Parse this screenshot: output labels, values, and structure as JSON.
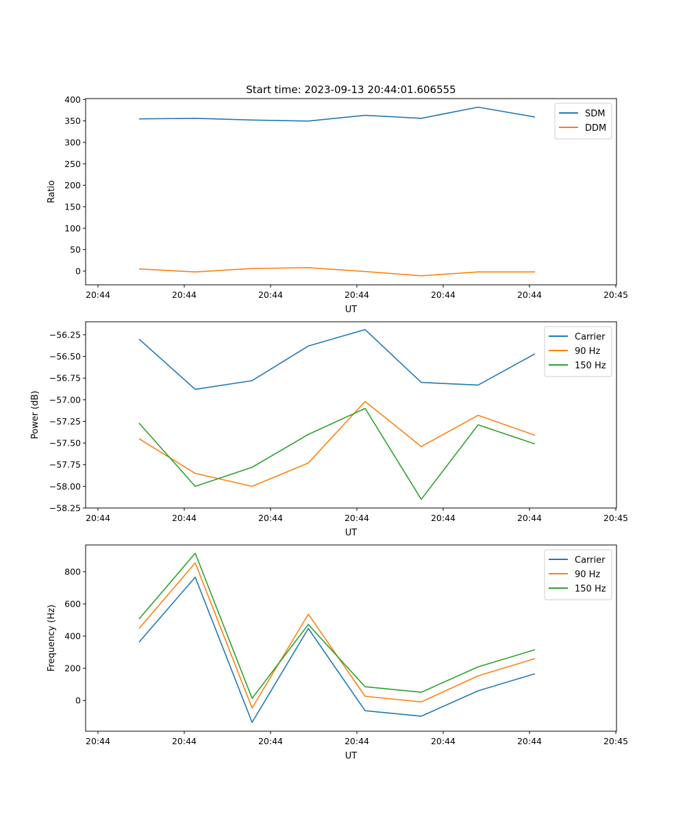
{
  "chart_data": [
    {
      "type": "line",
      "title": "Start time: 2023-09-13 20:44:01.606555",
      "xlabel": "UT",
      "ylabel": "Ratio",
      "x": [
        0.476,
        1.127,
        1.786,
        2.437,
        3.095,
        3.746,
        4.405,
        5.063
      ],
      "xticks": [
        0,
        1,
        2,
        3,
        4,
        5,
        6
      ],
      "xtick_labels": [
        "20:44",
        "20:44",
        "20:44",
        "20:44",
        "20:44",
        "20:44",
        "20:45"
      ],
      "xlim": [
        -0.143,
        6.008
      ],
      "ylim": [
        -32,
        402
      ],
      "yticks": [
        0,
        50,
        100,
        150,
        200,
        250,
        300,
        350,
        400
      ],
      "ytick_labels": [
        "0",
        "50",
        "100",
        "150",
        "200",
        "250",
        "300",
        "350",
        "400"
      ],
      "legend": "top-right",
      "series": [
        {
          "name": "SDM",
          "color": "#1f77b4",
          "values": [
            354.6,
            356,
            352,
            349.6,
            363,
            356,
            382,
            359
          ]
        },
        {
          "name": "DDM",
          "color": "#ff7f0e",
          "values": [
            5,
            -2,
            6,
            8,
            -1,
            -11,
            -2,
            -2
          ]
        }
      ]
    },
    {
      "type": "line",
      "title": "",
      "xlabel": "UT",
      "ylabel": "Power (dB)",
      "x": [
        0.476,
        1.127,
        1.786,
        2.437,
        3.095,
        3.746,
        4.405,
        5.063
      ],
      "xticks": [
        0,
        1,
        2,
        3,
        4,
        5,
        6
      ],
      "xtick_labels": [
        "20:44",
        "20:44",
        "20:44",
        "20:44",
        "20:44",
        "20:44",
        "20:45"
      ],
      "xlim": [
        -0.143,
        6.008
      ],
      "ylim": [
        -58.25,
        -56.1
      ],
      "yticks": [
        -58.25,
        -58.0,
        -57.75,
        -57.5,
        -57.25,
        -57.0,
        -56.75,
        -56.5,
        -56.25
      ],
      "ytick_labels": [
        "−58.25",
        "−58.00",
        "−57.75",
        "−57.50",
        "−57.25",
        "−57.00",
        "−56.75",
        "−56.50",
        "−56.25"
      ],
      "legend": "top-right",
      "series": [
        {
          "name": "Carrier",
          "color": "#1f77b4",
          "values": [
            -56.3,
            -56.88,
            -56.78,
            -56.38,
            -56.19,
            -56.8,
            -56.83,
            -56.47
          ]
        },
        {
          "name": "90 Hz",
          "color": "#ff7f0e",
          "values": [
            -57.45,
            -57.85,
            -58.0,
            -57.73,
            -57.02,
            -57.54,
            -57.18,
            -57.41
          ]
        },
        {
          "name": "150 Hz",
          "color": "#2ca02c",
          "values": [
            -57.27,
            -58.0,
            -57.78,
            -57.4,
            -57.1,
            -58.15,
            -57.29,
            -57.51
          ]
        }
      ]
    },
    {
      "type": "line",
      "title": "",
      "xlabel": "UT",
      "ylabel": "Frequency (Hz)",
      "x": [
        0.476,
        1.127,
        1.786,
        2.437,
        3.095,
        3.746,
        4.405,
        5.063
      ],
      "xticks": [
        0,
        1,
        2,
        3,
        4,
        5,
        6
      ],
      "xtick_labels": [
        "20:44",
        "20:44",
        "20:44",
        "20:44",
        "20:44",
        "20:44",
        "20:45"
      ],
      "xlim": [
        -0.143,
        6.008
      ],
      "ylim": [
        -191,
        966
      ],
      "yticks": [
        0,
        200,
        400,
        600,
        800
      ],
      "ytick_labels": [
        "0",
        "200",
        "400",
        "600",
        "800"
      ],
      "legend": "top-right",
      "series": [
        {
          "name": "Carrier",
          "color": "#1f77b4",
          "values": [
            362,
            766,
            -136,
            447,
            -64,
            -98,
            60,
            166
          ]
        },
        {
          "name": "90 Hz",
          "color": "#ff7f0e",
          "values": [
            447,
            855,
            -47,
            536,
            26,
            -9,
            153,
            260
          ]
        },
        {
          "name": "150 Hz",
          "color": "#2ca02c",
          "values": [
            506,
            915,
            13,
            472,
            85,
            51,
            209,
            315
          ]
        }
      ]
    }
  ]
}
